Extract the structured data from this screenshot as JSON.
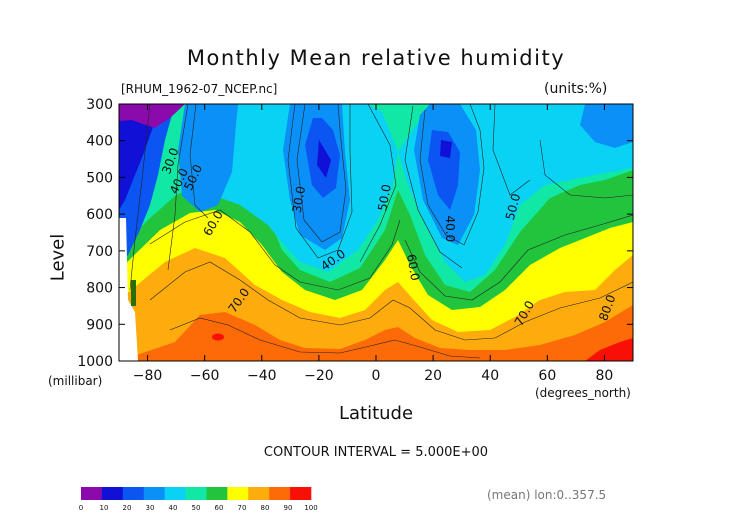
{
  "chart_data": {
    "type": "contour",
    "title": "Monthly Mean relative humidity",
    "dataset": "[RHUM_1962-07_NCEP.nc]",
    "units": "(units:%)",
    "ylabel": "Level",
    "yunit": "(millibar)",
    "xlabel": "Latitude",
    "xunit": "(degrees_north)",
    "contour_interval": "CONTOUR INTERVAL = 5.000E+00",
    "footer": "(mean) lon:0..357.5",
    "xlim": [
      -90,
      90
    ],
    "ylim": [
      1000,
      300
    ],
    "x_ticks": [
      -80,
      -60,
      -40,
      -20,
      0,
      20,
      40,
      60,
      80
    ],
    "y_ticks": [
      300,
      400,
      500,
      600,
      700,
      800,
      900,
      1000
    ],
    "contour_labels": [
      {
        "text": "30.0",
        "lat": -72,
        "lev": 455,
        "rot": -70
      },
      {
        "text": "40.0",
        "lat": -69,
        "lev": 510,
        "rot": -65
      },
      {
        "text": "50.0",
        "lat": -64,
        "lev": 500,
        "rot": -65
      },
      {
        "text": "60.0",
        "lat": -57,
        "lev": 625,
        "rot": -60
      },
      {
        "text": "70.0",
        "lat": -48,
        "lev": 835,
        "rot": -55
      },
      {
        "text": "30.0",
        "lat": -27,
        "lev": 560,
        "rot": -80
      },
      {
        "text": "40.0",
        "lat": -15,
        "lev": 725,
        "rot": -35
      },
      {
        "text": "50.0",
        "lat": 3,
        "lev": 555,
        "rot": -80
      },
      {
        "text": "60.0",
        "lat": 13,
        "lev": 745,
        "rot": 80
      },
      {
        "text": "40.0",
        "lat": 26,
        "lev": 640,
        "rot": 90
      },
      {
        "text": "50.0",
        "lat": 48,
        "lev": 580,
        "rot": -75
      },
      {
        "text": "70.0",
        "lat": 52,
        "lev": 870,
        "rot": -60
      },
      {
        "text": "80.0",
        "lat": 81,
        "lev": 855,
        "rot": -70
      }
    ],
    "colorbar": {
      "levels": [
        0,
        10,
        20,
        30,
        40,
        50,
        60,
        70,
        80,
        90,
        100
      ],
      "colors": [
        "#8a0aac",
        "#1010d6",
        "#0b55f2",
        "#0a90f6",
        "#0ad2f4",
        "#12e8a6",
        "#21c43c",
        "#ffff00",
        "#fdab0d",
        "#fd6a08",
        "#f81006"
      ]
    }
  }
}
